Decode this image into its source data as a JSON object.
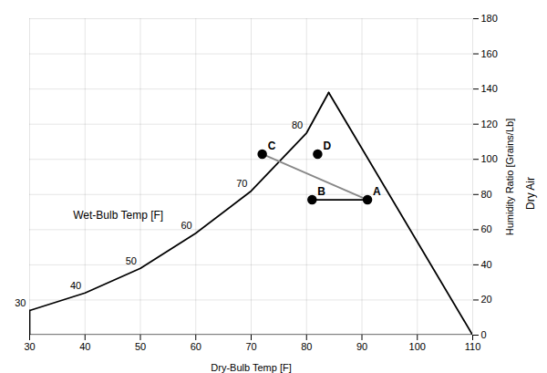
{
  "chart_data": {
    "type": "line",
    "xlabel": "Dry-Bulb Temp [F]",
    "ylabel": "Humidity Ratio [Grains/Lb]",
    "ylabel2": "Dry Air",
    "xlim": [
      30,
      110
    ],
    "ylim": [
      0,
      180
    ],
    "xticks": [
      30,
      40,
      50,
      60,
      70,
      80,
      90,
      100,
      110
    ],
    "yticks": [
      0,
      20,
      40,
      60,
      80,
      100,
      120,
      140,
      160,
      180
    ],
    "grid": true,
    "series": [
      {
        "type": "line",
        "color": "black",
        "x": [
          30,
          40,
          50,
          60,
          70,
          80,
          84
        ],
        "values": [
          14,
          24,
          38,
          58,
          82,
          115,
          138
        ]
      },
      {
        "type": "line",
        "color": "black",
        "x": [
          84,
          110
        ],
        "values": [
          138,
          0
        ]
      },
      {
        "type": "line",
        "color": "black",
        "x": [
          30,
          110
        ],
        "values": [
          0,
          0
        ]
      },
      {
        "type": "line",
        "color": "black",
        "x": [
          30,
          30
        ],
        "values": [
          0,
          14
        ]
      },
      {
        "type": "line",
        "color": "black",
        "x": [
          91,
          81
        ],
        "values": [
          77,
          77
        ]
      },
      {
        "type": "line",
        "color": "#888888",
        "x": [
          72,
          91
        ],
        "values": [
          103,
          77
        ]
      },
      {
        "type": "scatter",
        "color": "black",
        "marker": "circle",
        "x": [
          91,
          81,
          72,
          82
        ],
        "values": [
          77,
          77,
          103,
          103
        ],
        "labels": [
          "A",
          "B",
          "C",
          "D"
        ]
      },
      {
        "type": "text",
        "x": [
          30,
          40,
          50,
          60,
          70,
          80
        ],
        "values": [
          14,
          24,
          38,
          58,
          82,
          115
        ],
        "labels": [
          "30",
          "40",
          "50",
          "60",
          "70",
          "80"
        ]
      }
    ],
    "annotations": [
      {
        "text": "Wet-Bulb Temp [F]",
        "x": 46,
        "y": 68
      }
    ]
  }
}
